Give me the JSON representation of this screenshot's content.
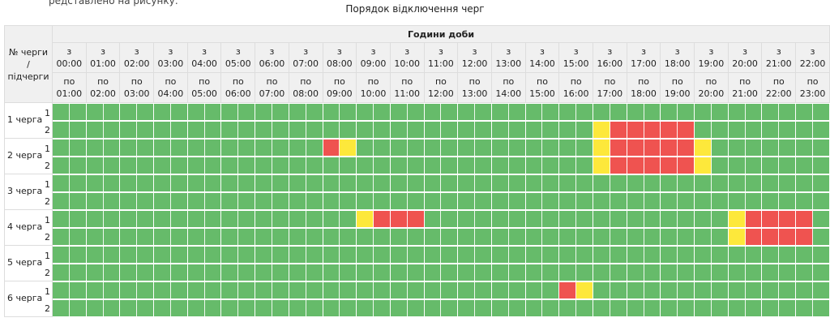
{
  "caption": "Порядок відключення черг",
  "top_note": "редставлено на рисунку:",
  "header": {
    "corner_lines": [
      "№ черги",
      "/",
      "підчерги"
    ],
    "group_label": "Години доби",
    "from_prefix": "з",
    "to_prefix": "по",
    "from_times": [
      "00:00",
      "01:00",
      "02:00",
      "03:00",
      "04:00",
      "05:00",
      "06:00",
      "07:00",
      "08:00",
      "09:00",
      "10:00",
      "11:00",
      "12:00",
      "13:00",
      "14:00",
      "15:00",
      "16:00",
      "17:00",
      "18:00",
      "19:00",
      "20:00",
      "21:00",
      "22:00"
    ],
    "to_times": [
      "01:00",
      "02:00",
      "03:00",
      "04:00",
      "05:00",
      "06:00",
      "07:00",
      "08:00",
      "09:00",
      "10:00",
      "11:00",
      "12:00",
      "13:00",
      "14:00",
      "15:00",
      "16:00",
      "17:00",
      "18:00",
      "19:00",
      "20:00",
      "21:00",
      "22:00",
      "23:00"
    ]
  },
  "colors": {
    "on": "#66bb6a",
    "off": "#ef5350",
    "maybe": "#fde83b"
  },
  "queues": [
    {
      "label": "1 черга",
      "subs": [
        "1",
        "2"
      ],
      "rows": [
        "G G G G G G G G G G G G G G G G G G G G G G G G G G G G G G G G G G G G G G G G G G G G G G",
        "G G G G G G G G G G G G G G G G G G G G G G G G G G G G G G G G Y R R R R R G G G G G G G G"
      ]
    },
    {
      "label": "2 черга",
      "subs": [
        "1",
        "2"
      ],
      "rows": [
        "G G G G G G G G G G G G G G G G R Y G G G G G G G G G G G G G G Y R R R R R Y G G G G G G G",
        "G G G G G G G G G G G G G G G G G G G G G G G G G G G G G G G G Y R R R R R Y G G G G G G G"
      ]
    },
    {
      "label": "3 черга",
      "subs": [
        "1",
        "2"
      ],
      "rows": [
        "G G G G G G G G G G G G G G G G G G G G G G G G G G G G G G G G G G G G G G G G G G G G G G",
        "G G G G G G G G G G G G G G G G G G G G G G G G G G G G G G G G G G G G G G G G G G G G G G"
      ]
    },
    {
      "label": "4 черга",
      "subs": [
        "1",
        "2"
      ],
      "rows": [
        "G G G G G G G G G G G G G G G G G G Y R R R G G G G G G G G G G G G G G G G G G Y R R R R G",
        "G G G G G G G G G G G G G G G G G G G G G G G G G G G G G G G G G G G G G G G G Y R R R R G"
      ]
    },
    {
      "label": "5 черга",
      "subs": [
        "1",
        "2"
      ],
      "rows": [
        "G G G G G G G G G G G G G G G G G G G G G G G G G G G G G G G G G G G G G G G G G G G G G G",
        "G G G G G G G G G G G G G G G G G G G G G G G G G G G G G G G G G G G G G G G G G G G G G G"
      ]
    },
    {
      "label": "6 черга",
      "subs": [
        "1",
        "2"
      ],
      "rows": [
        "G G G G G G G G G G G G G G G G G G G G G G G G G G G G G G R Y G G G G G G G G G G G G G G",
        "G G G G G G G G G G G G G G G G G G G G G G G G G G G G G G G G G G G G G G G G G G G G G G"
      ]
    }
  ]
}
